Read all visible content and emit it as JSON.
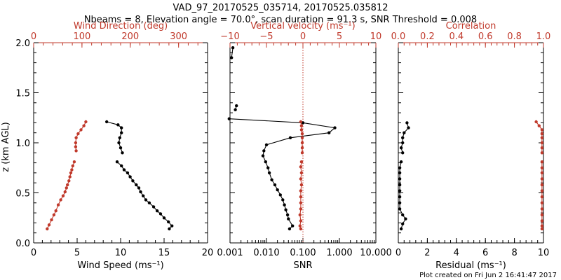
{
  "title": "VAD_97_20170525_035714, 20170525.035812",
  "subtitle": "Nbeams = 8, Elevation angle = 70.0°, scan duration = 91.3 s, SNR Threshold = 0.008",
  "footer": "Plot created on Fri Jun  2 16:41:47 2017",
  "colors": {
    "black": "#000000",
    "red": "#c0392b"
  },
  "chart_data": [
    {
      "type": "line",
      "panel": "wind",
      "ylabel": "z (km AGL)",
      "ylim": [
        0,
        2
      ],
      "yticks": [
        "0.0",
        "0.5",
        "1.0",
        "1.5",
        "2.0"
      ],
      "xlabel_bottom": "Wind Speed (ms⁻¹)",
      "xlim_bottom": [
        0,
        20
      ],
      "xticks_bottom": [
        "0",
        "5",
        "10",
        "15",
        "20"
      ],
      "xlabel_top": "Wind Direction (deg)",
      "xlim_top": [
        0,
        360
      ],
      "xticks_top": [
        "0",
        "100",
        "200",
        "300"
      ],
      "series": [
        {
          "axis": "bottom",
          "color": "black",
          "segments": [
            [
              [
                8.4,
                1.21
              ],
              [
                9.7,
                1.18
              ],
              [
                10.1,
                1.15
              ],
              [
                10.1,
                1.1
              ],
              [
                9.9,
                1.05
              ],
              [
                9.8,
                1.0
              ],
              [
                10.0,
                0.95
              ],
              [
                10.2,
                0.9
              ]
            ],
            [
              [
                9.6,
                0.81
              ],
              [
                10.1,
                0.77
              ],
              [
                10.4,
                0.73
              ],
              [
                10.8,
                0.7
              ],
              [
                11.1,
                0.66
              ],
              [
                11.4,
                0.62
              ],
              [
                11.8,
                0.58
              ],
              [
                12.1,
                0.55
              ],
              [
                12.3,
                0.51
              ],
              [
                12.6,
                0.47
              ],
              [
                12.9,
                0.43
              ],
              [
                13.3,
                0.4
              ],
              [
                13.8,
                0.36
              ],
              [
                14.2,
                0.32
              ],
              [
                14.6,
                0.29
              ],
              [
                15.0,
                0.25
              ],
              [
                15.5,
                0.21
              ],
              [
                15.9,
                0.17
              ],
              [
                15.6,
                0.14
              ]
            ]
          ]
        },
        {
          "axis": "top",
          "color": "red",
          "segments": [
            [
              [
                108,
                1.21
              ],
              [
                104,
                1.17
              ],
              [
                98,
                1.13
              ],
              [
                92,
                1.09
              ],
              [
                88,
                1.05
              ],
              [
                87,
                1.0
              ],
              [
                87,
                0.96
              ],
              [
                88,
                0.92
              ]
            ],
            [
              [
                84,
                0.81
              ],
              [
                81,
                0.77
              ],
              [
                79,
                0.73
              ],
              [
                77,
                0.7
              ],
              [
                75,
                0.66
              ],
              [
                73,
                0.62
              ],
              [
                70,
                0.58
              ],
              [
                68,
                0.55
              ],
              [
                65,
                0.51
              ],
              [
                61,
                0.47
              ],
              [
                56,
                0.43
              ],
              [
                51,
                0.38
              ],
              [
                46,
                0.32
              ],
              [
                42,
                0.28
              ],
              [
                37,
                0.23
              ],
              [
                32,
                0.18
              ],
              [
                28,
                0.14
              ]
            ]
          ]
        }
      ]
    },
    {
      "type": "line",
      "panel": "snr",
      "ylim": [
        0,
        2
      ],
      "xlabel_bottom": "SNR",
      "xscale_bottom": "log",
      "xlim_bottom": [
        0.001,
        10
      ],
      "xticks_bottom": [
        "0.001",
        "0.010",
        "0.100",
        "1.000",
        "10.000"
      ],
      "xlabel_top": "Vertical velocity (ms⁻¹)",
      "xlim_top": [
        -10,
        10
      ],
      "xticks_top": [
        "−10",
        "−5",
        "0",
        "5",
        "10"
      ],
      "zero_line_top": 0,
      "series": [
        {
          "axis": "bottom",
          "color": "black",
          "segments": [
            [
              [
                0.0012,
                1.95
              ],
              [
                0.0011,
                1.85
              ]
            ],
            [
              [
                0.0015,
                1.37
              ],
              [
                0.0014,
                1.33
              ]
            ],
            [
              [
                0.00095,
                1.24
              ],
              [
                0.1,
                1.2
              ],
              [
                0.75,
                1.15
              ],
              [
                0.52,
                1.1
              ],
              [
                0.045,
                1.05
              ],
              [
                0.01,
                0.98
              ],
              [
                0.0085,
                0.92
              ],
              [
                0.008,
                0.87
              ],
              [
                0.0095,
                0.81
              ],
              [
                0.011,
                0.75
              ],
              [
                0.012,
                0.7
              ],
              [
                0.014,
                0.63
              ],
              [
                0.017,
                0.58
              ],
              [
                0.02,
                0.53
              ],
              [
                0.024,
                0.48
              ],
              [
                0.028,
                0.43
              ],
              [
                0.031,
                0.38
              ],
              [
                0.034,
                0.33
              ],
              [
                0.038,
                0.28
              ],
              [
                0.04,
                0.24
              ],
              [
                0.052,
                0.17
              ],
              [
                0.043,
                0.14
              ]
            ]
          ]
        },
        {
          "axis": "top",
          "color": "red",
          "segments": [
            [
              [
                -0.3,
                1.21
              ],
              [
                -0.2,
                1.17
              ],
              [
                -0.2,
                1.13
              ],
              [
                -0.1,
                1.09
              ],
              [
                -0.1,
                1.05
              ],
              [
                -0.1,
                1.0
              ],
              [
                -0.1,
                0.95
              ],
              [
                -0.1,
                0.9
              ]
            ],
            [
              [
                -0.2,
                0.81
              ],
              [
                -0.3,
                0.76
              ],
              [
                -0.2,
                0.7
              ],
              [
                -0.3,
                0.64
              ],
              [
                -0.2,
                0.58
              ],
              [
                -0.3,
                0.52
              ],
              [
                -0.3,
                0.46
              ],
              [
                -0.3,
                0.4
              ],
              [
                -0.3,
                0.34
              ],
              [
                -0.4,
                0.28
              ],
              [
                -0.3,
                0.22
              ],
              [
                -0.4,
                0.17
              ],
              [
                -0.3,
                0.14
              ]
            ]
          ]
        }
      ]
    },
    {
      "type": "line",
      "panel": "residual",
      "ylim": [
        0,
        2
      ],
      "xlabel_bottom": "Residual (ms⁻¹)",
      "xlim_bottom": [
        0,
        10
      ],
      "xticks_bottom": [
        "0",
        "2",
        "4",
        "6",
        "8",
        "10"
      ],
      "xlabel_top": "Correlation",
      "xlim_top": [
        0,
        1
      ],
      "xticks_top": [
        "0.0",
        "0.2",
        "0.4",
        "0.6",
        "0.8",
        "1.0"
      ],
      "series": [
        {
          "axis": "bottom",
          "color": "black",
          "segments": [
            [
              [
                0.6,
                1.2
              ],
              [
                0.7,
                1.15
              ],
              [
                0.4,
                1.1
              ],
              [
                0.3,
                1.05
              ],
              [
                0.3,
                1.0
              ],
              [
                0.2,
                0.95
              ],
              [
                0.3,
                0.9
              ]
            ],
            [
              [
                0.2,
                0.81
              ],
              [
                0.1,
                0.75
              ],
              [
                0.1,
                0.7
              ],
              [
                0.1,
                0.64
              ],
              [
                0.1,
                0.58
              ],
              [
                0.1,
                0.52
              ],
              [
                0.1,
                0.46
              ],
              [
                0.1,
                0.4
              ],
              [
                0.1,
                0.34
              ],
              [
                0.3,
                0.28
              ],
              [
                0.5,
                0.24
              ],
              [
                0.3,
                0.19
              ],
              [
                0.2,
                0.14
              ]
            ]
          ]
        },
        {
          "axis": "top",
          "color": "red",
          "segments": [
            [
              [
                0.95,
                1.21
              ],
              [
                0.97,
                1.17
              ],
              [
                0.99,
                1.13
              ],
              [
                0.99,
                1.09
              ],
              [
                0.99,
                1.05
              ],
              [
                0.99,
                1.0
              ],
              [
                0.99,
                0.95
              ],
              [
                0.99,
                0.9
              ]
            ],
            [
              [
                0.99,
                0.81
              ],
              [
                0.99,
                0.75
              ],
              [
                0.99,
                0.7
              ],
              [
                0.99,
                0.64
              ],
              [
                0.99,
                0.58
              ],
              [
                0.99,
                0.52
              ],
              [
                0.99,
                0.46
              ],
              [
                0.99,
                0.4
              ],
              [
                0.99,
                0.34
              ],
              [
                0.99,
                0.28
              ],
              [
                0.99,
                0.22
              ],
              [
                0.99,
                0.17
              ],
              [
                0.99,
                0.14
              ]
            ]
          ]
        }
      ]
    }
  ]
}
